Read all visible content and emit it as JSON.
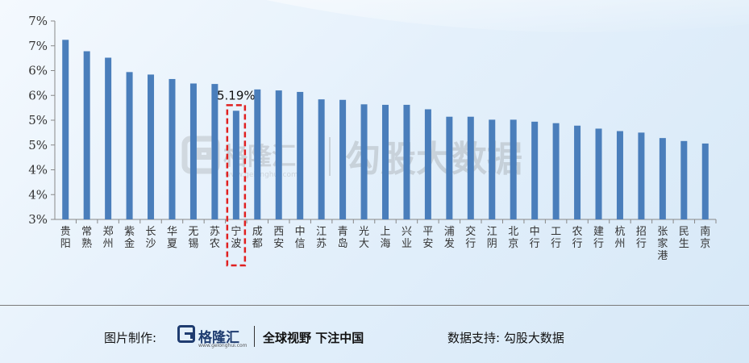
{
  "chart_data": {
    "type": "bar",
    "title": "",
    "xlabel": "",
    "ylabel": "",
    "categories": [
      "贵阳",
      "常熟",
      "郑州",
      "紫金",
      "长沙",
      "华夏",
      "无锡",
      "苏农",
      "宁波",
      "成都",
      "西安",
      "中信",
      "江苏",
      "青岛",
      "光大",
      "上海",
      "兴业",
      "平安",
      "浦发",
      "交行",
      "江阴",
      "北京",
      "中行",
      "工行",
      "农行",
      "建行",
      "杭州",
      "招行",
      "张家港",
      "民生",
      "南京"
    ],
    "values": [
      6.62,
      6.39,
      6.26,
      5.97,
      5.92,
      5.83,
      5.74,
      5.73,
      5.19,
      5.62,
      5.6,
      5.57,
      5.42,
      5.41,
      5.32,
      5.31,
      5.31,
      5.22,
      5.07,
      5.07,
      5.01,
      5.01,
      4.97,
      4.94,
      4.89,
      4.83,
      4.78,
      4.75,
      4.64,
      4.58,
      4.53
    ],
    "color": "#4a7ebb",
    "ylim": [
      3.0,
      7.0
    ],
    "y_ticks": [
      3,
      3.5,
      4,
      4.5,
      5,
      5.5,
      6,
      6.5,
      7
    ],
    "y_tick_labels": [
      "3%",
      "4%",
      "4%",
      "5%",
      "5%",
      "6%",
      "6%",
      "7%",
      "7%"
    ],
    "highlight": {
      "category": "宁波",
      "label": "5.19%",
      "box_color": "#e02020"
    },
    "grid": false,
    "legend": "none"
  },
  "watermark": {
    "brand": "格隆汇",
    "url": "www.gelonghui.com",
    "text": "勾股大数据"
  },
  "footer": {
    "made_by": "图片制作:",
    "logo_text": "格隆汇",
    "logo_url": "www.gelonghui.com",
    "slogan": "全球视野 下注中国",
    "support": "数据支持: 勾股大数据"
  }
}
